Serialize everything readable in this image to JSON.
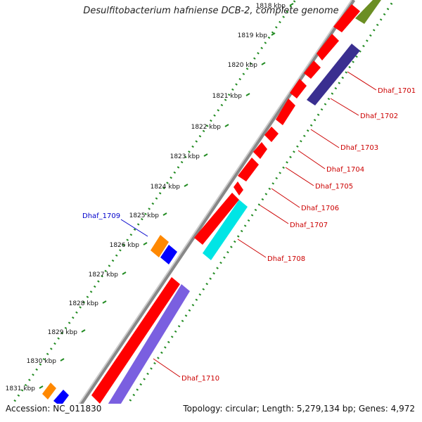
{
  "map": {
    "title": "Desulfitobacterium hafniense DCB-2, complete genome",
    "accession": "Accession: NC_011830",
    "topology": "Topology: circular; Length: 5,279,134 bp; Genes: 4,972",
    "ticks": [
      "1818 kbp",
      "1819 kbp",
      "1820 kbp",
      "1821 kbp",
      "1822 kbp",
      "1823 kbp",
      "1824 kbp",
      "1825 kbp",
      "1826 kbp",
      "1827 kbp",
      "1828 kbp",
      "1829 kbp",
      "1830 kbp",
      "1831 kbp"
    ],
    "gene_labels": [
      {
        "name": "Dhaf_1701",
        "color": "#cc0000"
      },
      {
        "name": "Dhaf_1702",
        "color": "#cc0000"
      },
      {
        "name": "Dhaf_1703",
        "color": "#cc0000"
      },
      {
        "name": "Dhaf_1704",
        "color": "#cc0000"
      },
      {
        "name": "Dhaf_1705",
        "color": "#cc0000"
      },
      {
        "name": "Dhaf_1706",
        "color": "#cc0000"
      },
      {
        "name": "Dhaf_1707",
        "color": "#cc0000"
      },
      {
        "name": "Dhaf_1708",
        "color": "#cc0000"
      },
      {
        "name": "Dhaf_1709",
        "color": "#0000cc"
      },
      {
        "name": "Dhaf_1710",
        "color": "#cc0000"
      }
    ],
    "colors": {
      "backbone": "#777777",
      "cds_forward": "#ff0000",
      "cds_reverse": "#ff0000",
      "rna_orange": "#ff8800",
      "blue_feature": "#0000ff",
      "cyan_feature": "#00e5e5",
      "purple_feature": "#7a5fe0",
      "darkblue_feature": "#3a2f90",
      "olive_feature": "#6b8e23",
      "tick_dots": "#228b22"
    }
  }
}
